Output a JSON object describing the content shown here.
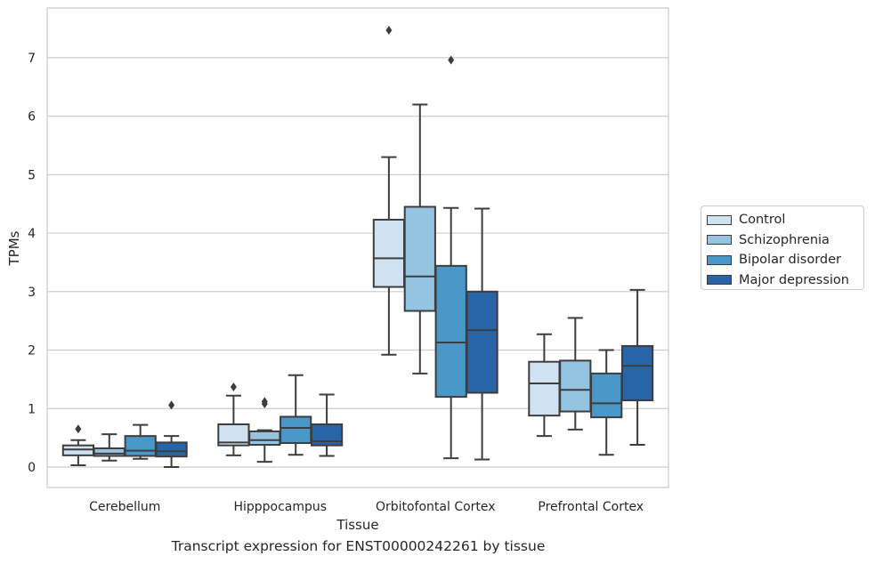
{
  "chart_data": {
    "type": "box",
    "caption": "Transcript expression for ENST00000242261 by tissue",
    "xlabel": "Tissue",
    "ylabel": "TPMs",
    "ylim": [
      -0.35,
      7.85
    ],
    "yticks": [
      0,
      1,
      2,
      3,
      4,
      5,
      6,
      7
    ],
    "grid": "horizontal",
    "legend_position": "right",
    "categories": [
      "Cerebellum",
      "Hipppocampus",
      "Orbitofontal Cortex",
      "Prefrontal Cortex"
    ],
    "series": [
      {
        "name": "Control",
        "color": "#d0e1f2",
        "boxes": [
          {
            "whislo": 0.03,
            "q1": 0.2,
            "med": 0.3,
            "q3": 0.37,
            "whishi": 0.46,
            "fliers": [
              0.65
            ]
          },
          {
            "whislo": 0.2,
            "q1": 0.37,
            "med": 0.42,
            "q3": 0.73,
            "whishi": 1.22,
            "fliers": [
              1.37
            ]
          },
          {
            "whislo": 1.92,
            "q1": 3.08,
            "med": 3.57,
            "q3": 4.23,
            "whishi": 5.3,
            "fliers": [
              7.47
            ]
          },
          {
            "whislo": 0.53,
            "q1": 0.88,
            "med": 1.43,
            "q3": 1.8,
            "whishi": 2.27,
            "fliers": []
          }
        ]
      },
      {
        "name": "Schizophrenia",
        "color": "#94c4df",
        "boxes": [
          {
            "whislo": 0.11,
            "q1": 0.19,
            "med": 0.23,
            "q3": 0.32,
            "whishi": 0.56,
            "fliers": []
          },
          {
            "whislo": 0.09,
            "q1": 0.38,
            "med": 0.46,
            "q3": 0.61,
            "whishi": 0.63,
            "fliers": [
              1.08,
              1.12
            ]
          },
          {
            "whislo": 1.6,
            "q1": 2.67,
            "med": 3.26,
            "q3": 4.45,
            "whishi": 6.2,
            "fliers": []
          },
          {
            "whislo": 0.64,
            "q1": 0.95,
            "med": 1.32,
            "q3": 1.82,
            "whishi": 2.55,
            "fliers": []
          }
        ]
      },
      {
        "name": "Bipolar disorder",
        "color": "#4a98c9",
        "boxes": [
          {
            "whislo": 0.14,
            "q1": 0.19,
            "med": 0.28,
            "q3": 0.53,
            "whishi": 0.72,
            "fliers": []
          },
          {
            "whislo": 0.21,
            "q1": 0.41,
            "med": 0.67,
            "q3": 0.86,
            "whishi": 1.57,
            "fliers": []
          },
          {
            "whislo": 0.15,
            "q1": 1.2,
            "med": 2.13,
            "q3": 3.44,
            "whishi": 4.43,
            "fliers": [
              6.96
            ]
          },
          {
            "whislo": 0.21,
            "q1": 0.85,
            "med": 1.09,
            "q3": 1.6,
            "whishi": 2.0,
            "fliers": []
          }
        ]
      },
      {
        "name": "Major depression",
        "color": "#2864a8",
        "boxes": [
          {
            "whislo": 0.0,
            "q1": 0.18,
            "med": 0.27,
            "q3": 0.42,
            "whishi": 0.53,
            "fliers": [
              1.06
            ]
          },
          {
            "whislo": 0.19,
            "q1": 0.37,
            "med": 0.44,
            "q3": 0.73,
            "whishi": 1.24,
            "fliers": []
          },
          {
            "whislo": 0.13,
            "q1": 1.27,
            "med": 2.34,
            "q3": 3.0,
            "whishi": 4.42,
            "fliers": []
          },
          {
            "whislo": 0.38,
            "q1": 1.14,
            "med": 1.73,
            "q3": 2.07,
            "whishi": 3.03,
            "fliers": []
          }
        ]
      }
    ]
  }
}
